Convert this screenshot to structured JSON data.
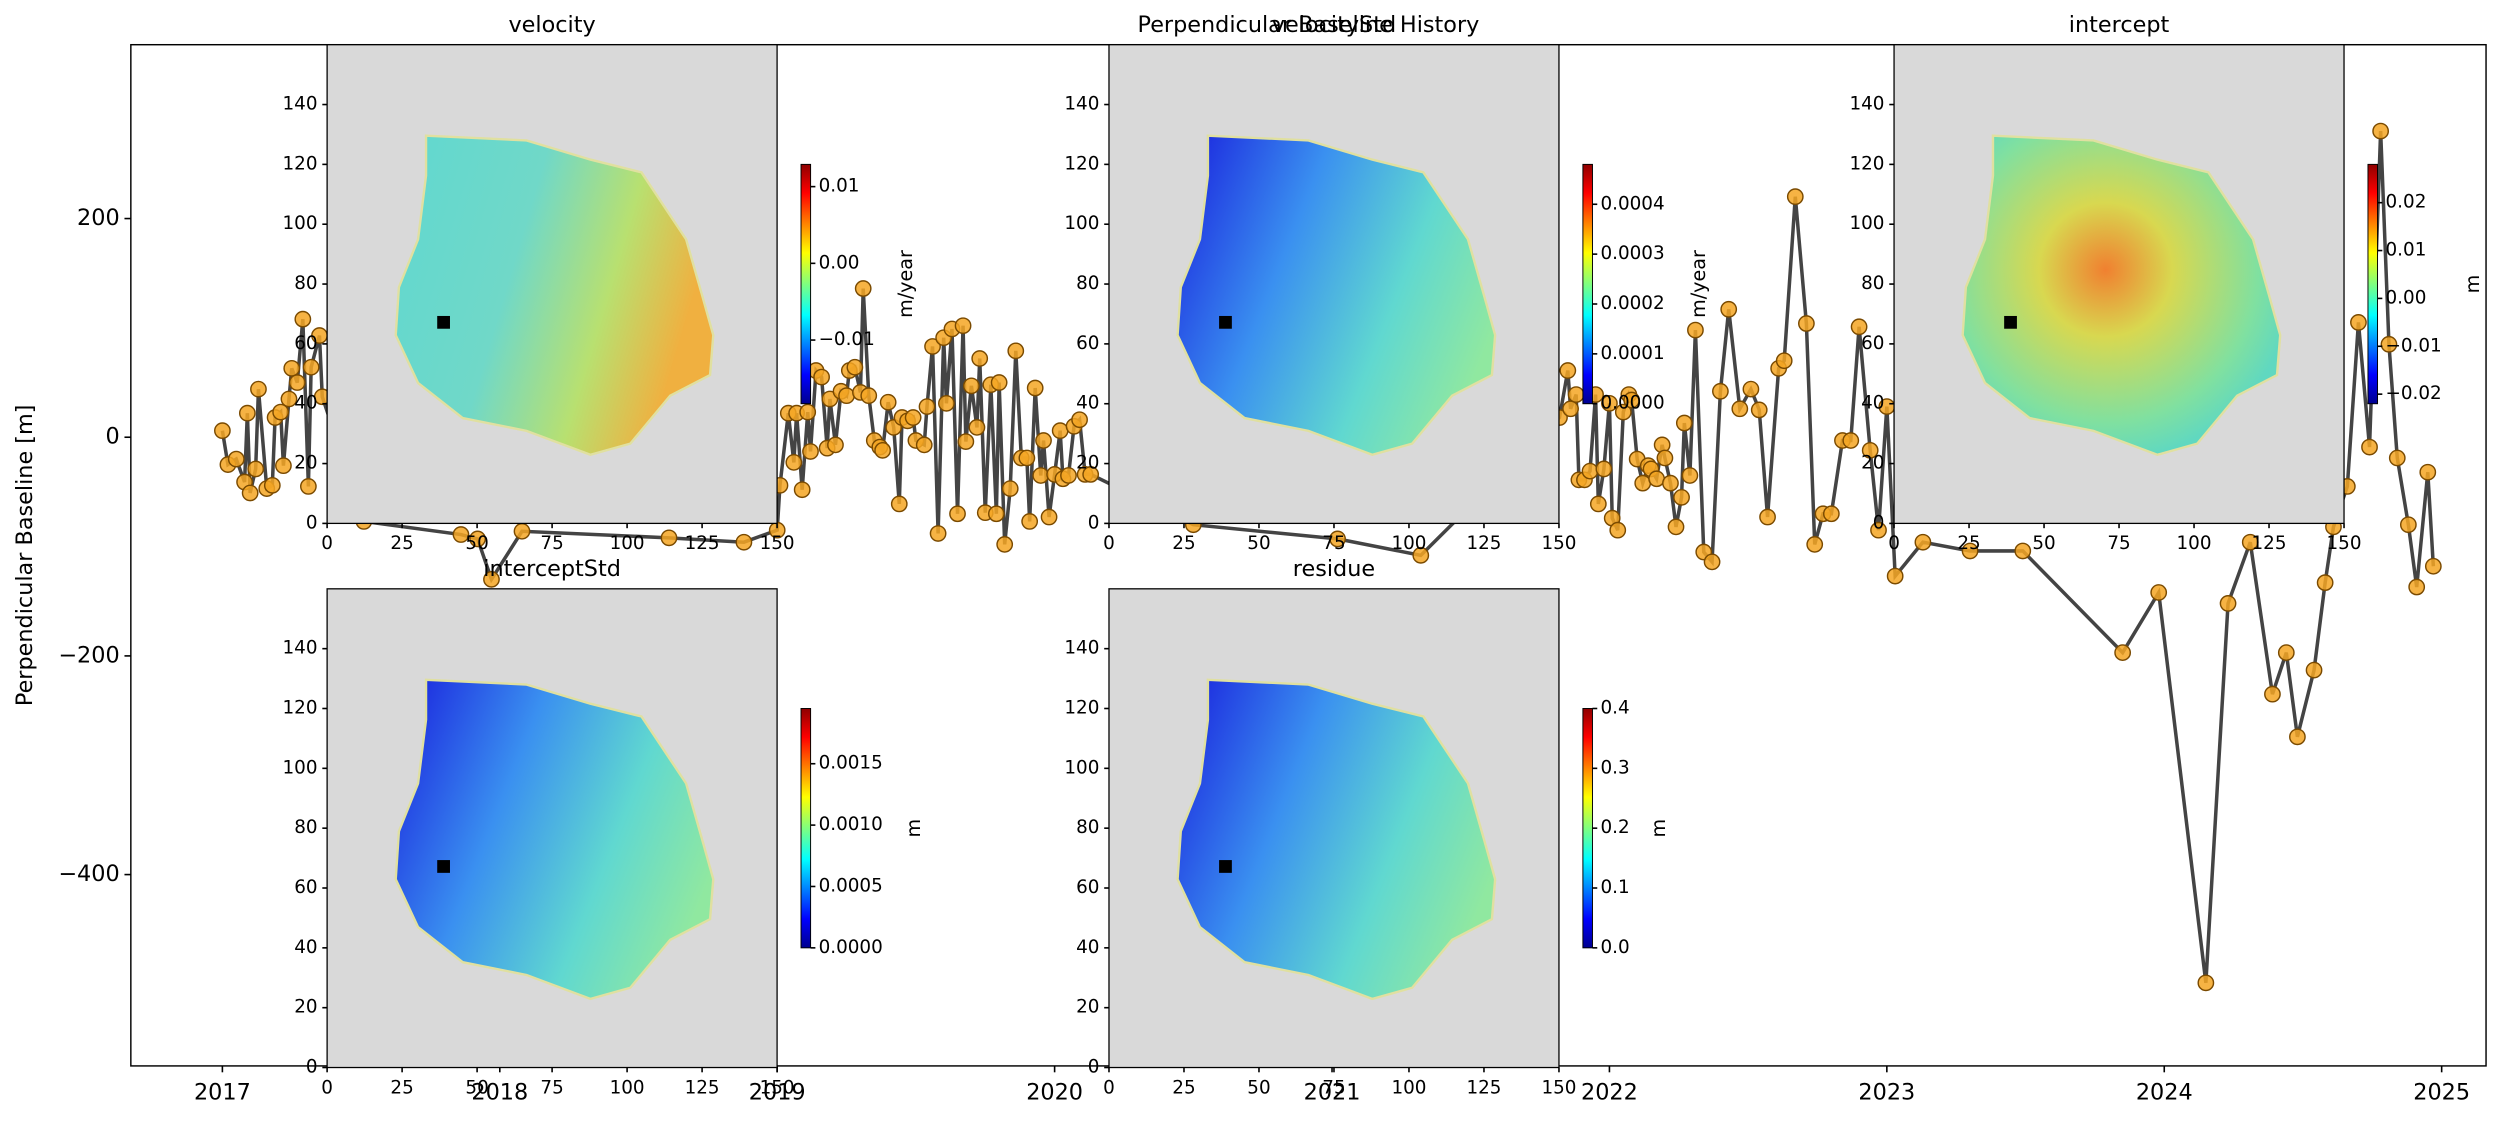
{
  "chart_data": [
    {
      "type": "line",
      "title": "Perpendicular Baseline History",
      "ylabel": "Perpendicular Baseline [m]",
      "x": [
        2017.0,
        2017.02,
        2017.05,
        2017.08,
        2017.09,
        2017.1,
        2017.12,
        2017.13,
        2017.16,
        2017.18,
        2017.19,
        2017.21,
        2017.22,
        2017.24,
        2017.25,
        2017.27,
        2017.29,
        2017.31,
        2017.32,
        2017.35,
        2017.36,
        2017.51,
        2017.86,
        2017.92,
        2017.97,
        2018.08,
        2018.61,
        2018.88,
        2019.0,
        2019.01,
        2019.04,
        2019.06,
        2019.07,
        2019.09,
        2019.11,
        2019.12,
        2019.14,
        2019.16,
        2019.18,
        2019.19,
        2019.21,
        2019.23,
        2019.25,
        2019.26,
        2019.28,
        2019.3,
        2019.31,
        2019.33,
        2019.35,
        2019.37,
        2019.38,
        2019.4,
        2019.42,
        2019.44,
        2019.45,
        2019.47,
        2019.49,
        2019.5,
        2019.53,
        2019.54,
        2019.56,
        2019.58,
        2019.6,
        2019.61,
        2019.63,
        2019.65,
        2019.67,
        2019.68,
        2019.7,
        2019.72,
        2019.73,
        2019.75,
        2019.77,
        2019.79,
        2019.8,
        2019.82,
        2019.84,
        2019.86,
        2019.88,
        2019.9,
        2019.91,
        2019.93,
        2019.95,
        2019.96,
        2019.98,
        2020.0,
        2020.02,
        2020.03,
        2020.05,
        2020.07,
        2020.09,
        2020.11,
        2020.13,
        2020.5,
        2021.02,
        2021.32,
        2021.82,
        2021.85,
        2021.86,
        2021.88,
        2021.89,
        2021.91,
        2021.93,
        2021.95,
        2021.96,
        2021.98,
        2022.0,
        2022.01,
        2022.03,
        2022.05,
        2022.07,
        2022.08,
        2022.1,
        2022.12,
        2022.14,
        2022.15,
        2022.17,
        2022.19,
        2022.2,
        2022.22,
        2022.24,
        2022.26,
        2022.27,
        2022.29,
        2022.31,
        2022.34,
        2022.37,
        2022.4,
        2022.43,
        2022.47,
        2022.51,
        2022.54,
        2022.57,
        2022.61,
        2022.63,
        2022.67,
        2022.71,
        2022.74,
        2022.77,
        2022.8,
        2022.84,
        2022.87,
        2022.9,
        2022.94,
        2022.97,
        2023.0,
        2023.03,
        2023.13,
        2023.3,
        2023.49,
        2023.85,
        2023.98,
        2024.15,
        2024.23,
        2024.31,
        2024.39,
        2024.44,
        2024.48,
        2024.54,
        2024.58,
        2024.61,
        2024.66,
        2024.7,
        2024.74,
        2024.78,
        2024.81,
        2024.84,
        2024.88,
        2024.91,
        2024.95,
        2024.97
      ],
      "values": [
        6,
        -25,
        -20,
        -41,
        22,
        -51,
        -29,
        44,
        -47,
        -44,
        18,
        23,
        -26,
        35,
        63,
        50,
        108,
        -45,
        64,
        93,
        37,
        -77,
        -89,
        -93,
        -130,
        -86,
        -92,
        -96,
        -85,
        -44,
        22,
        -23,
        22,
        -48,
        23,
        -13,
        61,
        55,
        -10,
        35,
        -7,
        42,
        38,
        61,
        64,
        41,
        136,
        38,
        -3,
        -9,
        -12,
        32,
        9,
        -61,
        18,
        15,
        18,
        -3,
        -7,
        28,
        83,
        -88,
        91,
        31,
        99,
        -70,
        102,
        -4,
        47,
        9,
        72,
        -69,
        48,
        -70,
        50,
        -98,
        -47,
        79,
        -19,
        -19,
        -77,
        45,
        -35,
        -3,
        -73,
        -34,
        6,
        -38,
        -35,
        10,
        16,
        -34,
        -34,
        -80,
        -93,
        -108,
        18,
        61,
        26,
        39,
        -39,
        -39,
        -31,
        39,
        -61,
        -29,
        31,
        -74,
        -85,
        23,
        39,
        34,
        -20,
        -42,
        -26,
        -29,
        -38,
        -7,
        -19,
        -42,
        -82,
        -55,
        13,
        -35,
        98,
        -105,
        -114,
        42,
        117,
        26,
        44,
        25,
        -73,
        63,
        70,
        220,
        104,
        -98,
        -70,
        -70,
        -3,
        -3,
        101,
        -12,
        -85,
        28,
        -127,
        -96,
        -104,
        -104,
        -197,
        -142,
        -499,
        -152,
        -96,
        -235,
        -197,
        -274,
        -213,
        -133,
        -82,
        -45,
        105,
        -9,
        280,
        85,
        -19,
        -80,
        -137,
        -32,
        -118
      ],
      "color": "#444444",
      "marker_color": "#f5a623",
      "xlim": [
        2016.67,
        2025.16
      ],
      "ylim": [
        -575,
        359
      ],
      "xticks": [
        2017,
        2018,
        2019,
        2020,
        2021,
        2022,
        2023,
        2024,
        2025
      ],
      "yticks": [
        200,
        0,
        {
          "value": -200,
          "label": "−200"
        },
        {
          "value": -400,
          "label": "−400"
        }
      ]
    },
    {
      "type": "image",
      "title": "velocity",
      "xlim": [
        0,
        150
      ],
      "ylim": [
        0,
        160
      ],
      "xticks": [
        0,
        25,
        50,
        75,
        100,
        125,
        150
      ],
      "yticks": [
        0,
        20,
        40,
        60,
        80,
        100,
        120,
        140
      ],
      "colorbar": {
        "label": "m/year",
        "lim": [
          -0.0183,
          0.0129
        ],
        "ticks": [
          0.01,
          {
            "value": 0,
            "label": "0.00"
          },
          {
            "value": -0.01,
            "label": "−0.01"
          }
        ]
      }
    },
    {
      "type": "image",
      "title": "velocityStd",
      "xlim": [
        0,
        150
      ],
      "ylim": [
        0,
        160
      ],
      "xticks": [
        0,
        25,
        50,
        75,
        100,
        125,
        150
      ],
      "yticks": [
        0,
        20,
        40,
        60,
        80,
        100,
        120,
        140
      ],
      "colorbar": {
        "label": "m/year",
        "lim": [
          0,
          0.00048
        ],
        "ticks": [
          0.0004,
          0.0003,
          0.0002,
          0.0001,
          {
            "value": 0,
            "label": "0.0000"
          }
        ]
      }
    },
    {
      "type": "image",
      "title": "intercept",
      "xlim": [
        0,
        150
      ],
      "ylim": [
        0,
        160
      ],
      "xticks": [
        0,
        25,
        50,
        75,
        100,
        125,
        150
      ],
      "yticks": [
        0,
        20,
        40,
        60,
        80,
        100,
        120,
        140
      ],
      "colorbar": {
        "label": "m",
        "lim": [
          -0.022,
          0.028
        ],
        "ticks": [
          0.02,
          0.01,
          {
            "value": 0,
            "label": "0.00"
          },
          {
            "value": -0.01,
            "label": "−0.01"
          },
          {
            "value": -0.02,
            "label": "−0.02"
          }
        ]
      }
    },
    {
      "type": "image",
      "title": "interceptStd",
      "xlim": [
        0,
        150
      ],
      "ylim": [
        0,
        160
      ],
      "xticks": [
        0,
        25,
        50,
        75,
        100,
        125,
        150
      ],
      "yticks": [
        0,
        20,
        40,
        60,
        80,
        100,
        120,
        140
      ],
      "colorbar": {
        "label": "m",
        "lim": [
          0,
          0.00195
        ],
        "ticks": [
          0.0015,
          {
            "value": 0.001,
            "label": "0.0010"
          },
          0.0005,
          {
            "value": 0,
            "label": "0.0000"
          }
        ]
      }
    },
    {
      "type": "image",
      "title": "residue",
      "xlim": [
        0,
        150
      ],
      "ylim": [
        0,
        160
      ],
      "xticks": [
        0,
        25,
        50,
        75,
        100,
        125,
        150
      ],
      "yticks": [
        0,
        20,
        40,
        60,
        80,
        100,
        120,
        140
      ],
      "colorbar": {
        "label": "m",
        "lim": [
          0,
          0.4
        ],
        "ticks": [
          0.4,
          0.3,
          0.2,
          0.1,
          {
            "value": 0,
            "label": "0.0"
          }
        ]
      }
    }
  ]
}
